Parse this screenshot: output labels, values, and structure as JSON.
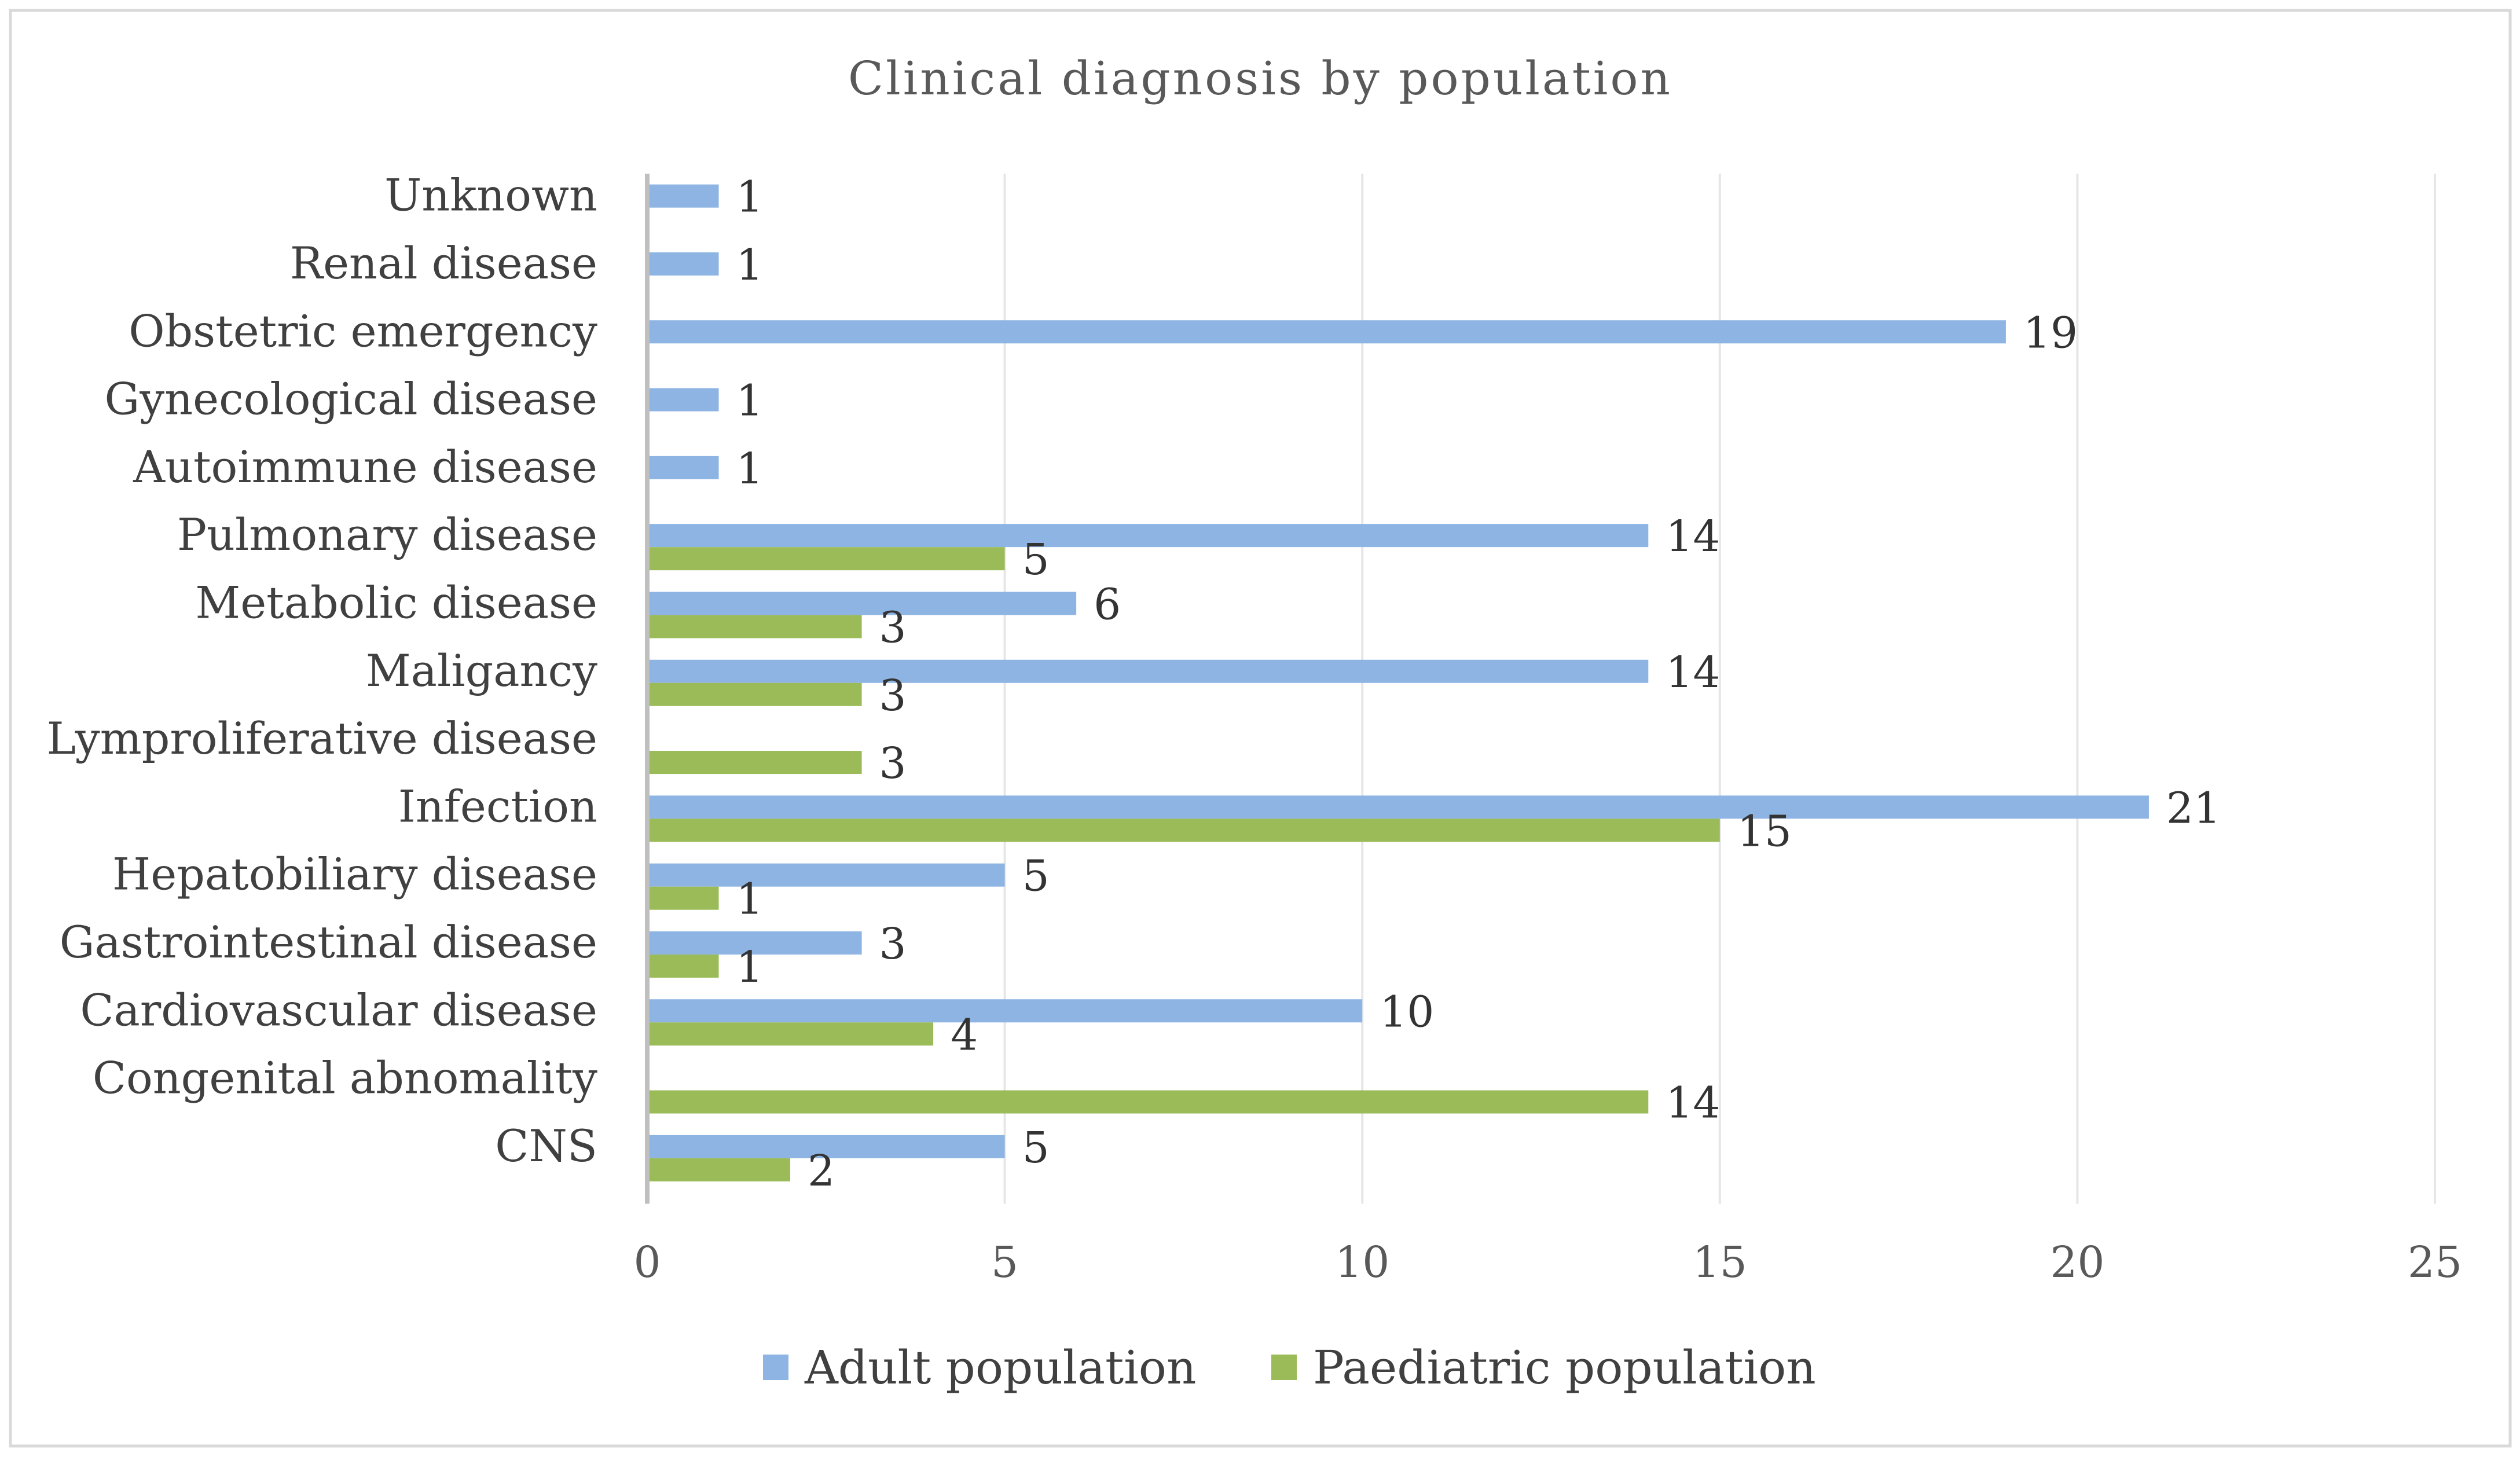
{
  "chart_data": {
    "type": "bar",
    "orientation": "horizontal",
    "title": "Clinical diagnosis by population",
    "xlabel": "",
    "ylabel": "",
    "xlim": [
      0,
      25
    ],
    "xticks": [
      0,
      5,
      10,
      15,
      20,
      25
    ],
    "xtick_labels": [
      "0",
      "5",
      "10",
      "15",
      "20",
      "25"
    ],
    "grid": true,
    "legend_position": "bottom",
    "categories": [
      "Unknown",
      "Renal disease",
      "Obstetric emergency",
      "Gynecological disease",
      "Autoimmune disease",
      "Pulmonary disease",
      "Metabolic disease",
      "Maligancy",
      "Lymproliferative disease",
      "Infection",
      "Hepatobiliary disease",
      "Gastrointestinal disease",
      "Cardiovascular disease",
      "Congenital abnomality",
      "CNS"
    ],
    "series": [
      {
        "name": "Adult population",
        "color": "#8DB4E2",
        "values": [
          1,
          1,
          19,
          1,
          1,
          14,
          6,
          14,
          null,
          21,
          5,
          3,
          10,
          null,
          5
        ]
      },
      {
        "name": "Paediatric population",
        "color": "#9BBB59",
        "values": [
          null,
          null,
          null,
          null,
          null,
          5,
          3,
          3,
          3,
          15,
          1,
          1,
          4,
          14,
          2
        ]
      }
    ]
  }
}
